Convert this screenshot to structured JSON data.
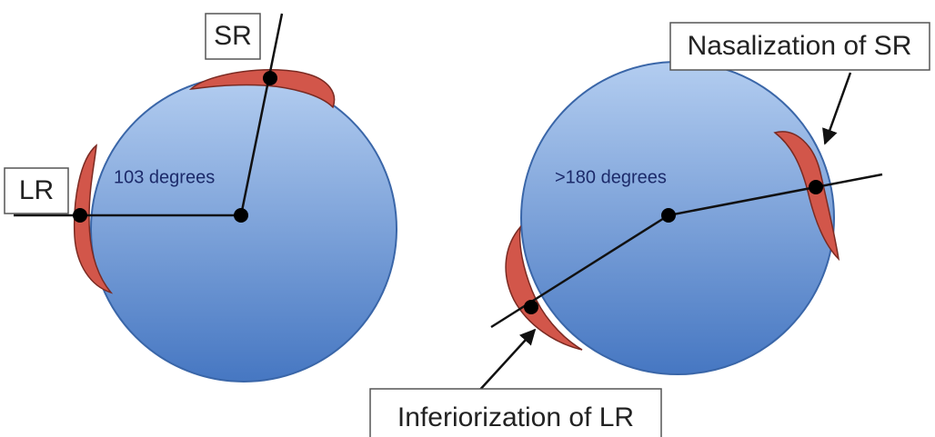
{
  "left": {
    "sr_label": "SR",
    "lr_label": "LR",
    "angle_label": "103 degrees"
  },
  "right": {
    "sr_label": "Nasalization of SR",
    "angle_label": ">180 degrees",
    "lr_label": "Inferiorization of LR"
  }
}
